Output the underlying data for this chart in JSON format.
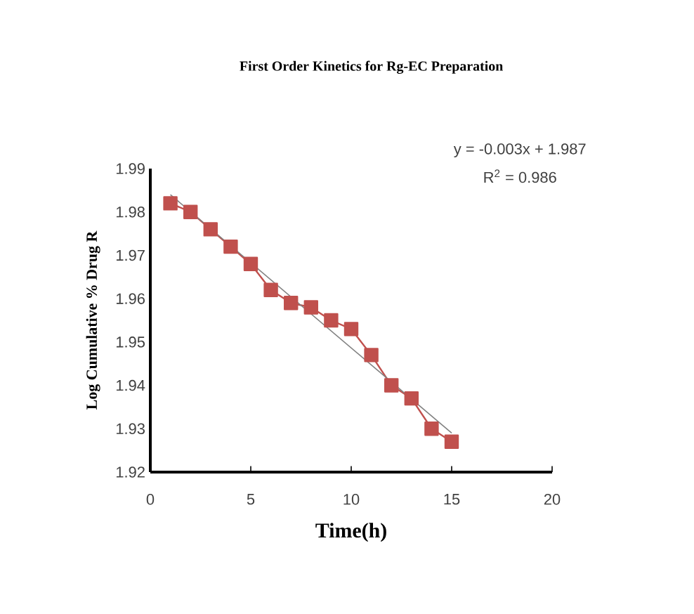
{
  "chart_data": {
    "type": "line",
    "title": "First Order Kinetics for Rg-EC Preparation",
    "xlabel": "Time(h)",
    "ylabel": "Log Cumulative % Drug R",
    "annotations": [
      "y = -0.003x + 1.987",
      "R$^{2}$ = 0.986"
    ],
    "x": [
      1,
      2,
      3,
      4,
      5,
      6,
      7,
      8,
      9,
      10,
      11,
      12,
      13,
      14,
      15
    ],
    "series": [
      {
        "color": "#c0504d",
        "marker": "square",
        "values": [
          1.982,
          1.98,
          1.976,
          1.972,
          1.968,
          1.962,
          1.959,
          1.958,
          1.955,
          1.953,
          1.947,
          1.94,
          1.937,
          1.93,
          1.927
        ]
      },
      {
        "type": "line",
        "color": "#808080",
        "marker": "none",
        "x": [
          1,
          15
        ],
        "values": [
          1.984,
          1.929
        ]
      }
    ],
    "xlim": [
      0,
      20
    ],
    "ylim": [
      1.92,
      1.99
    ],
    "xticks": [
      0,
      5,
      10,
      15,
      20
    ],
    "yticks": [
      1.92,
      1.93,
      1.94,
      1.95,
      1.96,
      1.97,
      1.98,
      1.99
    ]
  }
}
